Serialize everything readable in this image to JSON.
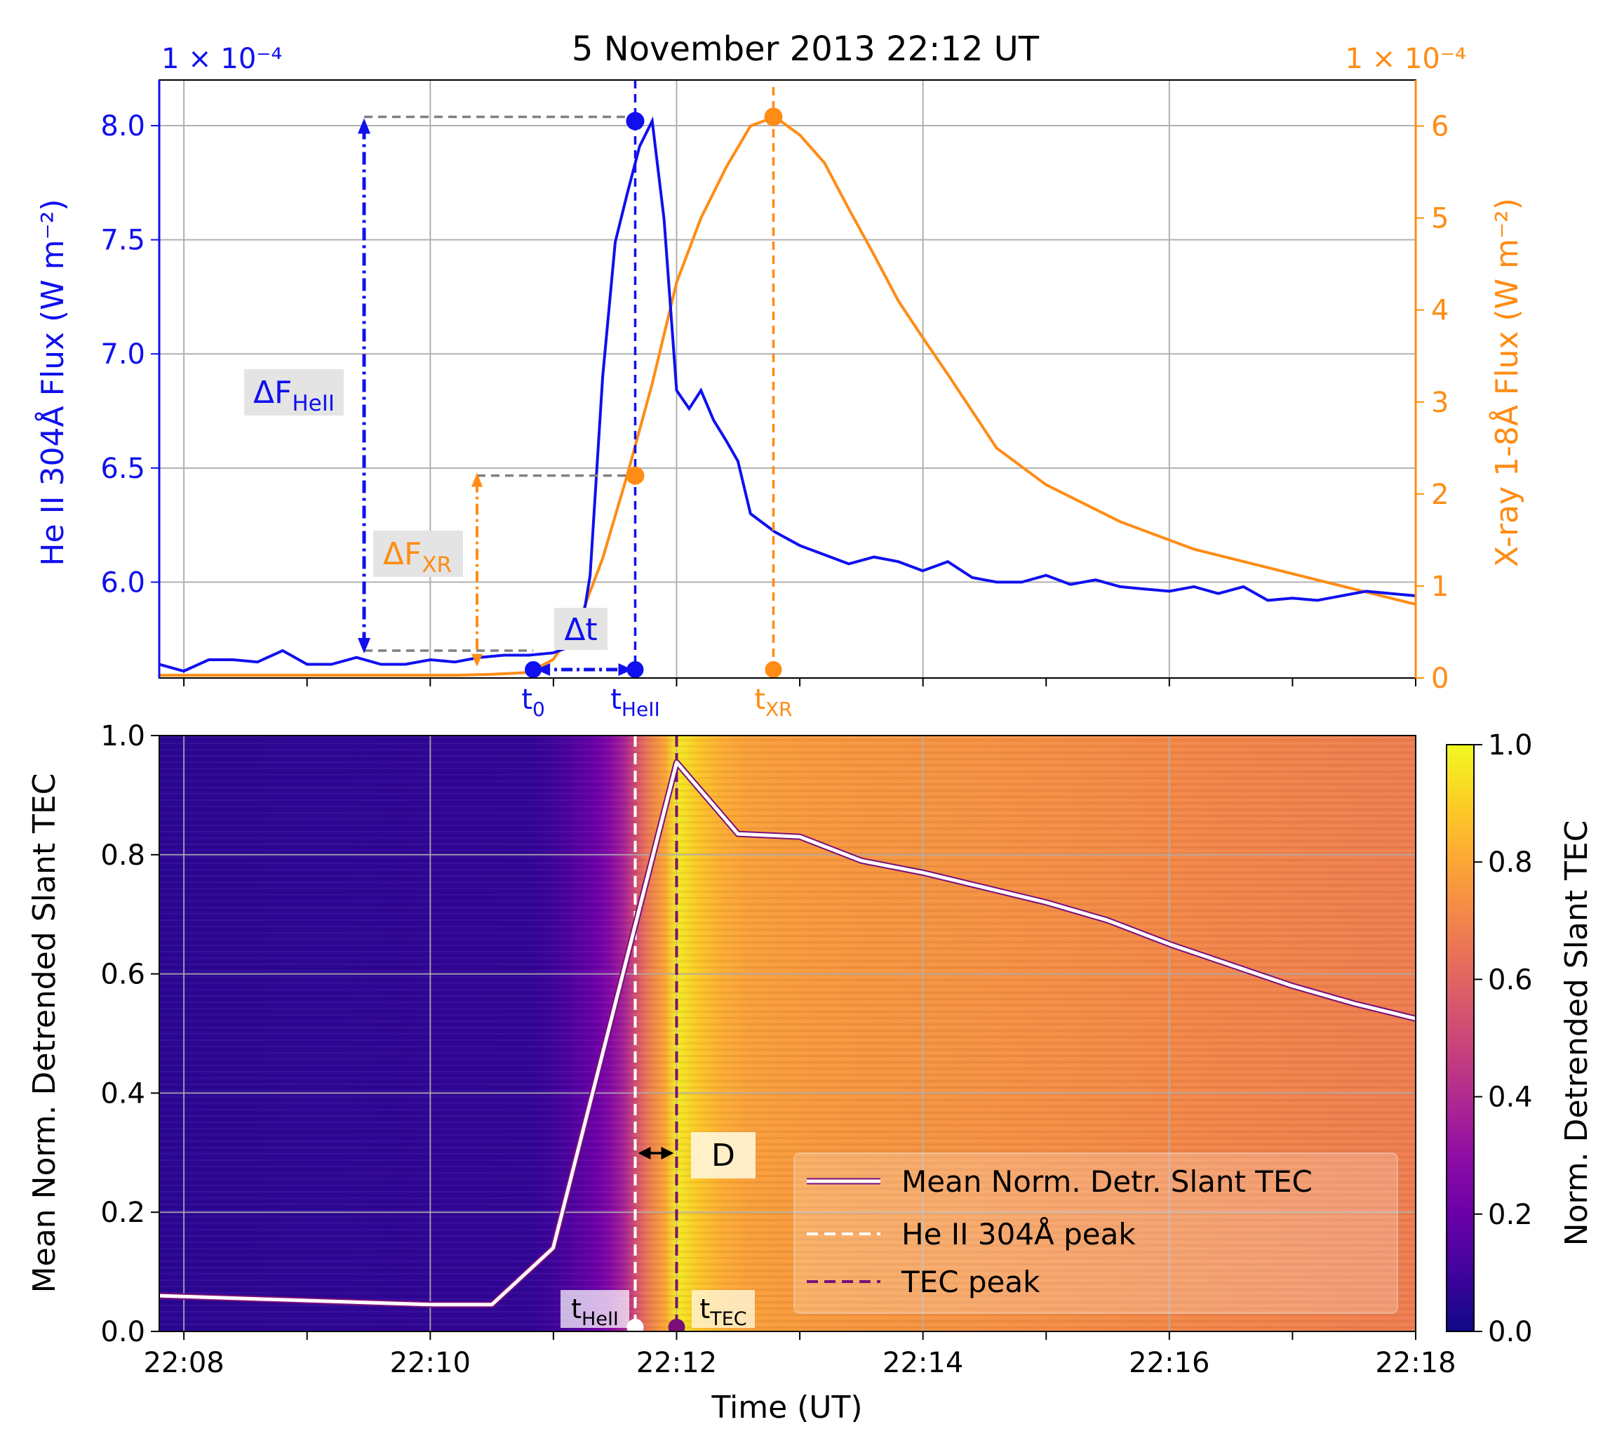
{
  "title": "5 November 2013 22:12 UT",
  "colors": {
    "hell": "#1010ee",
    "xr": "#ff8c14",
    "grid": "#b0b0b0",
    "dash_gray": "#808080",
    "white": "#ffffff",
    "tec_peak": "#7a0f78",
    "axis": "#000000"
  },
  "chart_data": [
    {
      "type": "line",
      "name": "top-panel",
      "xlabel": "",
      "xlim": [
        22.13,
        22.3
      ],
      "x_major_ticks": [
        22.133333,
        22.166667,
        22.2,
        22.233333,
        22.266667,
        22.3
      ],
      "left_axis": {
        "label": "He II 304Å Flux (W m⁻²)",
        "multiplier": "1 × 10⁻⁴",
        "ylim": [
          5.58,
          8.2
        ],
        "ticks": [
          6.0,
          6.5,
          7.0,
          7.5,
          8.0
        ],
        "tick_labels": [
          "6.0",
          "6.5",
          "7.0",
          "7.5",
          "8.0"
        ]
      },
      "right_axis": {
        "label": "X-ray 1-8Å Flux (W m⁻²)",
        "multiplier": "1 × 10⁻⁴",
        "ylim": [
          0,
          6.5
        ],
        "ticks": [
          0,
          1,
          2,
          3,
          4,
          5,
          6
        ],
        "tick_labels": [
          "0",
          "1",
          "2",
          "3",
          "4",
          "5",
          "6"
        ]
      },
      "series": [
        {
          "name": "He II 304Å",
          "axis": "left",
          "x": [
            22.13,
            22.1333,
            22.1367,
            22.14,
            22.1433,
            22.1467,
            22.15,
            22.1533,
            22.1567,
            22.16,
            22.1633,
            22.1667,
            22.17,
            22.1733,
            22.1767,
            22.18,
            22.1833,
            22.185,
            22.1867,
            22.1883,
            22.19,
            22.1917,
            22.1933,
            22.195,
            22.1967,
            22.1983,
            22.2,
            22.2017,
            22.2033,
            22.205,
            22.2067,
            22.2083,
            22.21,
            22.2133,
            22.2167,
            22.22,
            22.2233,
            22.2267,
            22.23,
            22.2333,
            22.2367,
            22.24,
            22.2433,
            22.2467,
            22.25,
            22.2533,
            22.2567,
            22.26,
            22.2633,
            22.2667,
            22.27,
            22.2733,
            22.2767,
            22.28,
            22.2833,
            22.2867,
            22.29,
            22.2933,
            22.2967,
            22.3
          ],
          "values": [
            5.64,
            5.61,
            5.66,
            5.66,
            5.65,
            5.7,
            5.64,
            5.64,
            5.67,
            5.64,
            5.64,
            5.66,
            5.65,
            5.67,
            5.68,
            5.68,
            5.69,
            5.71,
            5.71,
            6.03,
            6.9,
            7.49,
            7.7,
            7.91,
            8.02,
            7.59,
            6.84,
            6.76,
            6.84,
            6.71,
            6.62,
            6.53,
            6.3,
            6.22,
            6.16,
            6.12,
            6.08,
            6.11,
            6.09,
            6.05,
            6.09,
            6.02,
            6.0,
            6.0,
            6.03,
            5.99,
            6.01,
            5.98,
            5.97,
            5.96,
            5.98,
            5.95,
            5.98,
            5.92,
            5.93,
            5.92,
            5.94,
            5.96,
            5.95,
            5.94
          ]
        },
        {
          "name": "X-ray 1-8Å",
          "axis": "right",
          "x": [
            22.13,
            22.14,
            22.15,
            22.16,
            22.17,
            22.175,
            22.18,
            22.1833,
            22.1867,
            22.19,
            22.1933,
            22.1967,
            22.2,
            22.2033,
            22.2067,
            22.21,
            22.2133,
            22.2167,
            22.22,
            22.2233,
            22.2267,
            22.23,
            22.2333,
            22.2367,
            22.24,
            22.2433,
            22.25,
            22.26,
            22.27,
            22.28,
            22.29,
            22.3
          ],
          "values": [
            0.03,
            0.03,
            0.03,
            0.03,
            0.03,
            0.04,
            0.06,
            0.2,
            0.6,
            1.3,
            2.2,
            3.2,
            4.3,
            5.0,
            5.55,
            6.0,
            6.1,
            5.9,
            5.6,
            5.1,
            4.6,
            4.1,
            3.7,
            3.3,
            2.9,
            2.5,
            2.1,
            1.7,
            1.4,
            1.2,
            1.0,
            0.8
          ]
        }
      ],
      "markers": {
        "t0": 22.1806,
        "t_hell": 22.1944,
        "t_xr": 22.2131,
        "t0_label_main": "t",
        "t0_label_sub": "0",
        "t_hell_label_main": "t",
        "t_hell_label_sub": "HeII",
        "t_xr_label_main": "t",
        "t_xr_label_sub": "XR",
        "hell_peak_value": 8.02,
        "xr_peak_value": 6.1,
        "xr_at_t_hell": 2.2,
        "dF_hell_base_value": 5.7,
        "dF_xr_base_value": 0.2,
        "dF_hell_label_main": "ΔF",
        "dF_hell_label_sub": "HeII",
        "dF_xr_label_main": "ΔF",
        "dF_xr_label_sub": "XR",
        "dt_label": "Δt"
      }
    },
    {
      "type": "heatmap",
      "name": "bottom-panel",
      "xlabel": "Time (UT)",
      "ylabel": "Mean Norm. Detrended Slant TEC",
      "xlim": [
        22.13,
        22.3
      ],
      "ylim": [
        0,
        1.0
      ],
      "x_ticks": [
        22.133333,
        22.166667,
        22.2,
        22.233333,
        22.266667,
        22.3
      ],
      "x_tick_labels": [
        "22:08",
        "22:10",
        "22:12",
        "22:14",
        "22:16",
        "22:18"
      ],
      "y_ticks": [
        0.0,
        0.2,
        0.4,
        0.6,
        0.8,
        1.0
      ],
      "y_tick_labels": [
        "0.0",
        "0.2",
        "0.4",
        "0.6",
        "0.8",
        "1.0"
      ],
      "colorbar": {
        "label": "Norm. Detrended Slant TEC",
        "ticks": [
          0.0,
          0.2,
          0.4,
          0.6,
          0.8,
          1.0
        ],
        "tick_labels": [
          "0.0",
          "0.2",
          "0.4",
          "0.6",
          "0.8",
          "1.0"
        ],
        "colormap": "plasma"
      },
      "heatmap_profile": {
        "x": [
          22.13,
          22.18,
          22.183,
          22.186,
          22.189,
          22.191,
          22.193,
          22.1944,
          22.196,
          22.1985,
          22.2,
          22.203,
          22.206,
          22.21,
          22.22,
          22.24,
          22.27,
          22.3
        ],
        "values": [
          0.06,
          0.07,
          0.09,
          0.14,
          0.2,
          0.27,
          0.38,
          0.52,
          0.66,
          0.8,
          0.97,
          0.88,
          0.82,
          0.78,
          0.76,
          0.74,
          0.71,
          0.68
        ]
      },
      "series": [
        {
          "name": "Mean Norm. Detr. Slant TEC",
          "x": [
            22.13,
            22.1667,
            22.175,
            22.1833,
            22.2,
            22.2083,
            22.2167,
            22.225,
            22.2333,
            22.25,
            22.2583,
            22.2667,
            22.275,
            22.2833,
            22.2917,
            22.3
          ],
          "values": [
            0.06,
            0.045,
            0.045,
            0.14,
            0.955,
            0.835,
            0.83,
            0.79,
            0.77,
            0.72,
            0.69,
            0.65,
            0.615,
            0.58,
            0.55,
            0.525
          ]
        }
      ],
      "markers": {
        "t_hell": 22.1944,
        "t_tec": 22.2,
        "t_hell_label_main": "t",
        "t_hell_label_sub": "HeII",
        "t_tec_label_main": "t",
        "t_tec_label_sub": "TEC",
        "d_label": "D"
      },
      "legend": {
        "position": "lower-right",
        "entries": [
          {
            "label": "Mean Norm. Detr. Slant TEC",
            "style": "white-line-purple-edge"
          },
          {
            "label": "He II 304Å peak",
            "style": "white-dashed"
          },
          {
            "label": "TEC peak",
            "style": "purple-dashed"
          }
        ]
      }
    }
  ]
}
